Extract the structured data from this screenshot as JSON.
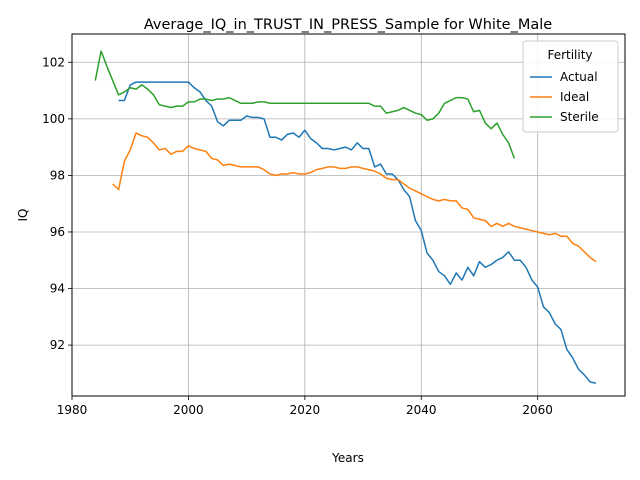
{
  "chart_data": {
    "type": "line",
    "title": "Average_IQ_in_TRUST_IN_PRESS_Sample for White_Male",
    "xlabel": "Years",
    "ylabel": "IQ",
    "xlim": [
      1980,
      2075
    ],
    "ylim": [
      90.2,
      103
    ],
    "xticks": [
      1980,
      2000,
      2020,
      2040,
      2060
    ],
    "yticks": [
      92,
      94,
      96,
      98,
      100,
      102
    ],
    "grid": true,
    "legend": {
      "title": "Fertility",
      "placement": "top-right"
    },
    "series": [
      {
        "name": "Actual",
        "color": "#1f77b4",
        "x": [
          1988,
          1989,
          1990,
          1991,
          1992,
          1993,
          1994,
          1995,
          1996,
          1997,
          1998,
          1999,
          2000,
          2001,
          2002,
          2003,
          2004,
          2005,
          2006,
          2007,
          2008,
          2009,
          2010,
          2011,
          2012,
          2013,
          2014,
          2015,
          2016,
          2017,
          2018,
          2019,
          2020,
          2021,
          2022,
          2023,
          2024,
          2025,
          2026,
          2027,
          2028,
          2029,
          2030,
          2031,
          2032,
          2033,
          2034,
          2035,
          2036,
          2037,
          2038,
          2039,
          2040,
          2041,
          2042,
          2043,
          2044,
          2045,
          2046,
          2047,
          2048,
          2049,
          2050,
          2051,
          2052,
          2053,
          2054,
          2055,
          2056,
          2057,
          2058,
          2059,
          2060,
          2061,
          2062,
          2063,
          2064,
          2065,
          2066,
          2067,
          2068,
          2069,
          2070
        ],
        "values": [
          100.65,
          100.65,
          101.2,
          101.3,
          101.3,
          101.3,
          101.3,
          101.3,
          101.3,
          101.3,
          101.3,
          101.3,
          101.3,
          101.1,
          100.95,
          100.65,
          100.45,
          99.9,
          99.75,
          99.95,
          99.95,
          99.95,
          100.1,
          100.05,
          100.05,
          100.0,
          99.35,
          99.35,
          99.25,
          99.45,
          99.5,
          99.35,
          99.6,
          99.3,
          99.15,
          98.95,
          98.95,
          98.9,
          98.95,
          99.0,
          98.9,
          99.15,
          98.95,
          98.95,
          98.3,
          98.4,
          98.05,
          98.05,
          97.85,
          97.5,
          97.25,
          96.4,
          96.05,
          95.25,
          95.0,
          94.6,
          94.45,
          94.15,
          94.55,
          94.3,
          94.75,
          94.45,
          94.95,
          94.75,
          94.85,
          95.0,
          95.1,
          95.3,
          95.0,
          95.0,
          94.75,
          94.3,
          94.05,
          93.35,
          93.15,
          92.75,
          92.55,
          91.85,
          91.55,
          91.15,
          90.95,
          90.7,
          90.65
        ]
      },
      {
        "name": "Ideal",
        "color": "#ff7f0e",
        "x": [
          1987,
          1988,
          1989,
          1990,
          1991,
          1992,
          1993,
          1994,
          1995,
          1996,
          1997,
          1998,
          1999,
          2000,
          2001,
          2002,
          2003,
          2004,
          2005,
          2006,
          2007,
          2008,
          2009,
          2010,
          2011,
          2012,
          2013,
          2014,
          2015,
          2016,
          2017,
          2018,
          2019,
          2020,
          2021,
          2022,
          2023,
          2024,
          2025,
          2026,
          2027,
          2028,
          2029,
          2030,
          2031,
          2032,
          2033,
          2034,
          2035,
          2036,
          2037,
          2038,
          2039,
          2040,
          2041,
          2042,
          2043,
          2044,
          2045,
          2046,
          2047,
          2048,
          2049,
          2050,
          2051,
          2052,
          2053,
          2054,
          2055,
          2056,
          2057,
          2058,
          2059,
          2060,
          2061,
          2062,
          2063,
          2064,
          2065,
          2066,
          2067,
          2068,
          2069,
          2070
        ],
        "values": [
          97.7,
          97.5,
          98.5,
          98.9,
          99.5,
          99.4,
          99.35,
          99.15,
          98.9,
          98.95,
          98.75,
          98.85,
          98.85,
          99.05,
          98.95,
          98.9,
          98.85,
          98.6,
          98.55,
          98.35,
          98.4,
          98.35,
          98.3,
          98.3,
          98.3,
          98.3,
          98.2,
          98.05,
          98.0,
          98.05,
          98.05,
          98.1,
          98.05,
          98.05,
          98.1,
          98.2,
          98.25,
          98.3,
          98.3,
          98.25,
          98.25,
          98.3,
          98.3,
          98.25,
          98.2,
          98.15,
          98.05,
          97.9,
          97.85,
          97.85,
          97.7,
          97.55,
          97.45,
          97.35,
          97.25,
          97.15,
          97.1,
          97.15,
          97.1,
          97.1,
          96.85,
          96.8,
          96.5,
          96.45,
          96.4,
          96.2,
          96.3,
          96.2,
          96.3,
          96.2,
          96.15,
          96.1,
          96.05,
          96.0,
          95.95,
          95.9,
          95.95,
          95.85,
          95.85,
          95.6,
          95.5,
          95.3,
          95.1,
          94.95
        ]
      },
      {
        "name": "Sterile",
        "color": "#2ca02c",
        "x": [
          1984,
          1985,
          1986,
          1987,
          1988,
          1989,
          1990,
          1991,
          1992,
          1993,
          1994,
          1995,
          1996,
          1997,
          1998,
          1999,
          2000,
          2001,
          2002,
          2003,
          2004,
          2005,
          2006,
          2007,
          2008,
          2009,
          2010,
          2011,
          2012,
          2013,
          2014,
          2015,
          2016,
          2017,
          2018,
          2019,
          2020,
          2021,
          2022,
          2023,
          2024,
          2025,
          2026,
          2027,
          2028,
          2029,
          2030,
          2031,
          2032,
          2033,
          2034,
          2035,
          2036,
          2037,
          2038,
          2039,
          2040,
          2041,
          2042,
          2043,
          2044,
          2045,
          2046,
          2047,
          2048,
          2049,
          2050,
          2051,
          2052,
          2053,
          2054,
          2055,
          2056
        ],
        "values": [
          101.35,
          102.4,
          101.85,
          101.35,
          100.85,
          100.95,
          101.1,
          101.05,
          101.2,
          101.05,
          100.85,
          100.5,
          100.45,
          100.4,
          100.45,
          100.45,
          100.6,
          100.6,
          100.7,
          100.7,
          100.65,
          100.7,
          100.7,
          100.75,
          100.65,
          100.55,
          100.55,
          100.55,
          100.6,
          100.6,
          100.55,
          100.55,
          100.55,
          100.55,
          100.55,
          100.55,
          100.55,
          100.55,
          100.55,
          100.55,
          100.55,
          100.55,
          100.55,
          100.55,
          100.55,
          100.55,
          100.55,
          100.55,
          100.45,
          100.45,
          100.2,
          100.25,
          100.3,
          100.4,
          100.3,
          100.2,
          100.15,
          99.95,
          100.0,
          100.2,
          100.55,
          100.65,
          100.75,
          100.75,
          100.7,
          100.25,
          100.3,
          99.85,
          99.65,
          99.85,
          99.45,
          99.15,
          98.6
        ]
      }
    ]
  }
}
